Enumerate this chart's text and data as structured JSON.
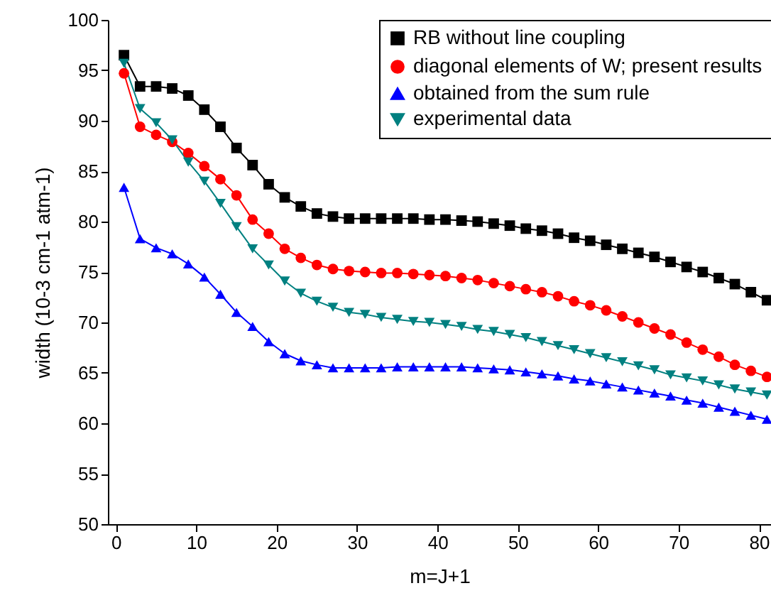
{
  "chart_data": {
    "type": "line",
    "xlabel": "m=J+1",
    "ylabel": "width (10-3 cm-1 atm-1)",
    "x": [
      1,
      3,
      5,
      7,
      9,
      11,
      13,
      15,
      17,
      19,
      21,
      23,
      25,
      27,
      29,
      31,
      33,
      35,
      37,
      39,
      41,
      43,
      45,
      47,
      49,
      51,
      53,
      55,
      57,
      59,
      61,
      63,
      65,
      67,
      69,
      71,
      73,
      75,
      77,
      79,
      81
    ],
    "series": [
      {
        "name": "RB without line coupling",
        "color": "#000000",
        "marker": "square",
        "values": [
          96.5,
          93.4,
          93.4,
          93.2,
          92.5,
          91.1,
          89.4,
          87.3,
          85.6,
          83.7,
          82.4,
          81.5,
          80.8,
          80.5,
          80.3,
          80.3,
          80.3,
          80.3,
          80.3,
          80.2,
          80.2,
          80.1,
          80.0,
          79.8,
          79.6,
          79.3,
          79.1,
          78.8,
          78.4,
          78.1,
          77.7,
          77.3,
          76.9,
          76.5,
          76.0,
          75.5,
          75.0,
          74.4,
          73.8,
          73.0,
          72.2
        ]
      },
      {
        "name": "diagonal elements of W; present results",
        "color": "#ff0000",
        "marker": "circle",
        "values": [
          94.7,
          89.4,
          88.6,
          87.9,
          86.8,
          85.5,
          84.2,
          82.6,
          80.2,
          78.8,
          77.3,
          76.4,
          75.7,
          75.3,
          75.1,
          75.0,
          74.9,
          74.9,
          74.8,
          74.7,
          74.6,
          74.4,
          74.2,
          73.9,
          73.6,
          73.3,
          73.0,
          72.6,
          72.1,
          71.7,
          71.2,
          70.6,
          70.0,
          69.4,
          68.8,
          68.0,
          67.3,
          66.6,
          65.8,
          65.2,
          64.6
        ]
      },
      {
        "name": "obtained from the sum rule",
        "color": "#0000ff",
        "marker": "triangle",
        "values": [
          83.4,
          78.3,
          77.4,
          76.8,
          75.8,
          74.5,
          72.8,
          71.0,
          69.6,
          68.1,
          66.9,
          66.2,
          65.8,
          65.5,
          65.5,
          65.5,
          65.5,
          65.6,
          65.6,
          65.6,
          65.6,
          65.6,
          65.5,
          65.4,
          65.3,
          65.1,
          64.9,
          64.7,
          64.4,
          64.2,
          63.9,
          63.6,
          63.3,
          63.0,
          62.7,
          62.3,
          62.0,
          61.6,
          61.2,
          60.8,
          60.4
        ]
      },
      {
        "name": "experimental data",
        "color": "#008080",
        "marker": "triangle-down",
        "values": [
          95.7,
          91.2,
          89.8,
          88.1,
          85.9,
          84.0,
          81.8,
          79.5,
          77.3,
          75.7,
          74.1,
          72.9,
          72.1,
          71.5,
          71.0,
          70.8,
          70.5,
          70.3,
          70.1,
          70.0,
          69.8,
          69.6,
          69.3,
          69.1,
          68.8,
          68.5,
          68.1,
          67.7,
          67.3,
          66.9,
          66.5,
          66.1,
          65.7,
          65.3,
          64.8,
          64.5,
          64.2,
          63.8,
          63.4,
          63.1,
          62.8
        ]
      }
    ],
    "xlim": [
      -1,
      81.5
    ],
    "xticks": [
      0,
      10,
      20,
      30,
      40,
      50,
      60,
      70,
      80
    ],
    "ylim": [
      50,
      100
    ],
    "yticks": [
      50,
      55,
      60,
      65,
      70,
      75,
      80,
      85,
      90,
      95,
      100
    ],
    "grid": false,
    "legend": "top right",
    "line_style": "solid"
  }
}
